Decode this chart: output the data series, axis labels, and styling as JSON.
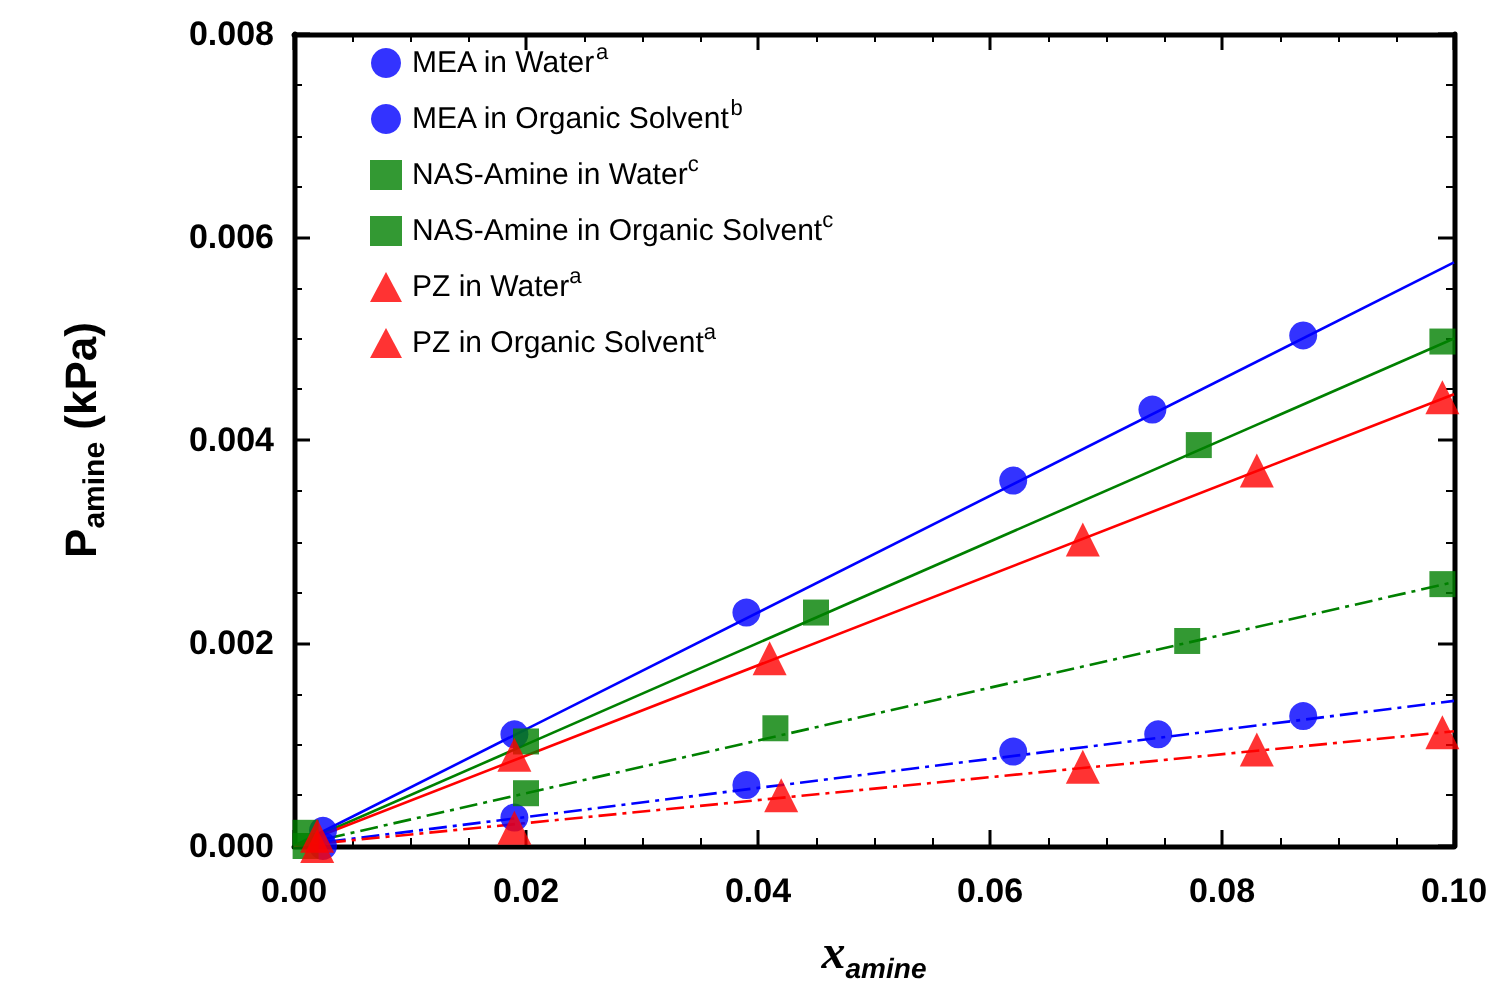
{
  "chart_data": {
    "type": "scatter",
    "xlabel": "x$_{amine}$",
    "ylabel": "P$_{amine}$ (kPa)",
    "xlim": [
      0,
      0.1
    ],
    "ylim": [
      0,
      0.008
    ],
    "xticks": [
      {
        "value": 0,
        "label": "0.00"
      },
      {
        "value": 0.02,
        "label": "0.02"
      },
      {
        "value": 0.04,
        "label": "0.04"
      },
      {
        "value": 0.06,
        "label": "0.06"
      },
      {
        "value": 0.08,
        "label": "0.08"
      },
      {
        "value": 0.1,
        "label": "0.10"
      }
    ],
    "yticks": [
      {
        "value": 0,
        "label": "0.000"
      },
      {
        "value": 0.002,
        "label": "0.002"
      },
      {
        "value": 0.004,
        "label": "0.004"
      },
      {
        "value": 0.006,
        "label": "0.006"
      },
      {
        "value": 0.008,
        "label": "0.008"
      }
    ],
    "grid": false,
    "legend": "top left",
    "series": [
      {
        "name": "MEA in Water$^{a}$",
        "color": "#0000ff",
        "marker": "circle",
        "x": [
          0.0025,
          0.019,
          0.039,
          0.062,
          0.074,
          0.087
        ],
        "values": [
          0.00015,
          0.0011,
          0.0023,
          0.0036,
          0.0043,
          0.00503
        ]
      },
      {
        "name": "MEA in Organic Solvent$^{b}$",
        "color": "#0000ff",
        "marker": "circle",
        "x": [
          0.0025,
          0.019,
          0.039,
          0.062,
          0.0745,
          0.087
        ],
        "values": [
          0,
          0.00028,
          0.0006,
          0.00093,
          0.0011,
          0.00128
        ]
      },
      {
        "name": "NAS-Amine in Water$^{c}$",
        "color": "#008000",
        "marker": "square",
        "x": [
          0.001,
          0.02,
          0.045,
          0.078,
          0.099
        ],
        "values": [
          0.00013,
          0.00103,
          0.0023,
          0.00395,
          0.00497
        ]
      },
      {
        "name": "NAS-Amine in Organic Solvent$^{c}$",
        "color": "#008000",
        "marker": "square",
        "x": [
          0.001,
          0.02,
          0.0415,
          0.077,
          0.099
        ],
        "values": [
          0,
          0.00052,
          0.00116,
          0.00202,
          0.00258
        ]
      },
      {
        "name": "PZ in Water$^{a}$",
        "color": "#ff0000",
        "marker": "triangle",
        "x": [
          0.002,
          0.019,
          0.041,
          0.068,
          0.083,
          0.099
        ],
        "values": [
          0.0001,
          0.0009,
          0.00185,
          0.00302,
          0.0037,
          0.00442
        ]
      },
      {
        "name": "PZ in Organic Solvent$^{a}$",
        "color": "#ff0000",
        "marker": "triangle",
        "x": [
          0.002,
          0.019,
          0.042,
          0.068,
          0.083,
          0.099
        ],
        "values": [
          0,
          0.00018,
          0.0005,
          0.00078,
          0.00095,
          0.00112
        ]
      },
      {
        "type": "line",
        "color": "#0000ff",
        "line_style": "solid",
        "marker": "none",
        "x": [
          0,
          0.1
        ],
        "values": [
          0,
          0.00575
        ]
      },
      {
        "type": "line",
        "color": "#0000ff",
        "line_style": "dashed",
        "marker": "none",
        "x": [
          0,
          0.1
        ],
        "values": [
          0,
          0.00143
        ]
      },
      {
        "type": "line",
        "color": "#008000",
        "line_style": "solid",
        "marker": "none",
        "x": [
          0,
          0.1
        ],
        "values": [
          0,
          0.005
        ]
      },
      {
        "type": "line",
        "color": "#008000",
        "line_style": "dashed",
        "marker": "none",
        "x": [
          0,
          0.1
        ],
        "values": [
          0,
          0.0026
        ]
      },
      {
        "type": "line",
        "color": "#ff0000",
        "line_style": "solid",
        "marker": "none",
        "x": [
          0,
          0.1
        ],
        "values": [
          0,
          0.00445
        ]
      },
      {
        "type": "line",
        "color": "#ff0000",
        "line_style": "dashed",
        "marker": "none",
        "x": [
          0,
          0.1
        ],
        "values": [
          0,
          0.00113
        ]
      }
    ]
  }
}
